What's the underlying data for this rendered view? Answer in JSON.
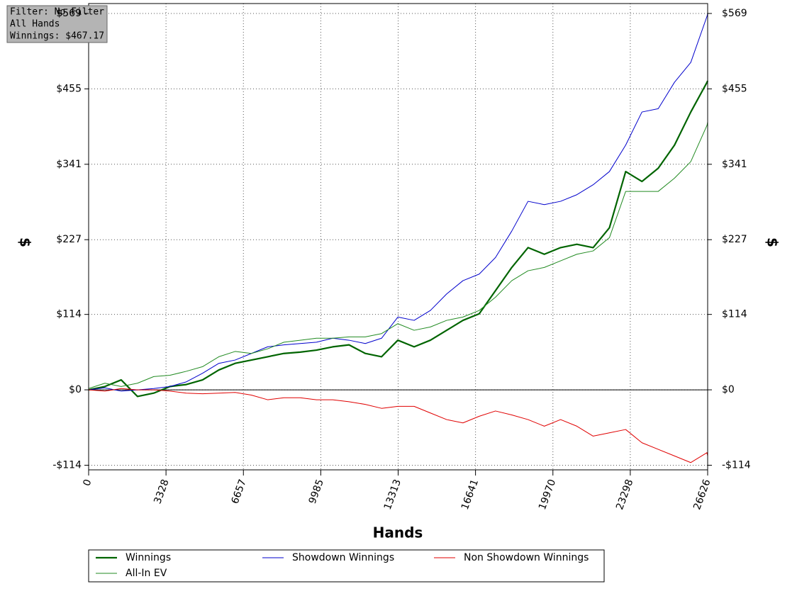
{
  "chart_data": {
    "type": "line",
    "filter_box": [
      "Filter: No Filter",
      "All Hands",
      "Winnings: $467.17"
    ],
    "x_label": "Hands",
    "y_label": "$",
    "y2_label": "$",
    "x": [
      0,
      700,
      1400,
      2100,
      2800,
      3500,
      4200,
      4900,
      5600,
      6300,
      7000,
      7700,
      8400,
      9100,
      9800,
      10500,
      11200,
      11900,
      12600,
      13300,
      14000,
      14700,
      15400,
      16100,
      16800,
      17500,
      18200,
      18900,
      19600,
      20300,
      21000,
      21700,
      22400,
      23100,
      23800,
      24500,
      25200,
      25900,
      26600,
      26626
    ],
    "series": [
      {
        "name": "Winnings",
        "color": "#006400",
        "width": 2.2,
        "values": [
          0,
          5,
          15,
          -10,
          -5,
          5,
          8,
          15,
          30,
          40,
          45,
          50,
          55,
          57,
          60,
          65,
          68,
          55,
          50,
          75,
          65,
          75,
          90,
          105,
          115,
          150,
          185,
          215,
          205,
          215,
          220,
          215,
          245,
          330,
          315,
          335,
          370,
          420,
          465,
          467.17
        ]
      },
      {
        "name": "Showdown Winnings",
        "color": "#0000cc",
        "width": 1,
        "values": [
          0,
          3,
          -2,
          0,
          2,
          5,
          12,
          25,
          40,
          45,
          55,
          65,
          68,
          70,
          72,
          78,
          75,
          70,
          78,
          110,
          105,
          120,
          145,
          165,
          175,
          200,
          240,
          285,
          280,
          285,
          295,
          310,
          330,
          370,
          420,
          425,
          465,
          495,
          565,
          569
        ]
      },
      {
        "name": "Non Showdown Winnings",
        "color": "#e00000",
        "width": 1,
        "values": [
          0,
          -2,
          2,
          0,
          0,
          -2,
          -5,
          -6,
          -5,
          -4,
          -8,
          -15,
          -12,
          -12,
          -15,
          -15,
          -18,
          -22,
          -28,
          -25,
          -25,
          -35,
          -45,
          -50,
          -40,
          -32,
          -38,
          -45,
          -55,
          -45,
          -55,
          -70,
          -65,
          -60,
          -80,
          -90,
          -100,
          -110,
          -95,
          -100
        ]
      },
      {
        "name": "All-In EV",
        "color": "#228b22",
        "width": 1,
        "values": [
          2,
          10,
          5,
          10,
          20,
          22,
          28,
          35,
          50,
          58,
          55,
          62,
          72,
          75,
          78,
          78,
          80,
          80,
          85,
          100,
          90,
          95,
          105,
          110,
          120,
          140,
          165,
          180,
          185,
          195,
          205,
          210,
          230,
          300,
          300,
          300,
          320,
          345,
          400,
          405
        ]
      }
    ],
    "xlim": [
      0,
      26626
    ],
    "xticks": [
      0,
      3328,
      6657,
      9985,
      13313,
      16641,
      19970,
      23298,
      26626
    ],
    "ylim": [
      -121,
      584
    ],
    "yticks": [
      {
        "value": -114,
        "label": "-$114"
      },
      {
        "value": 0,
        "label": "$0"
      },
      {
        "value": 114,
        "label": "$114"
      },
      {
        "value": 227,
        "label": "$227"
      },
      {
        "value": 341,
        "label": "$341"
      },
      {
        "value": 455,
        "label": "$455"
      },
      {
        "value": 569,
        "label": "$569"
      }
    ],
    "grid": true
  }
}
